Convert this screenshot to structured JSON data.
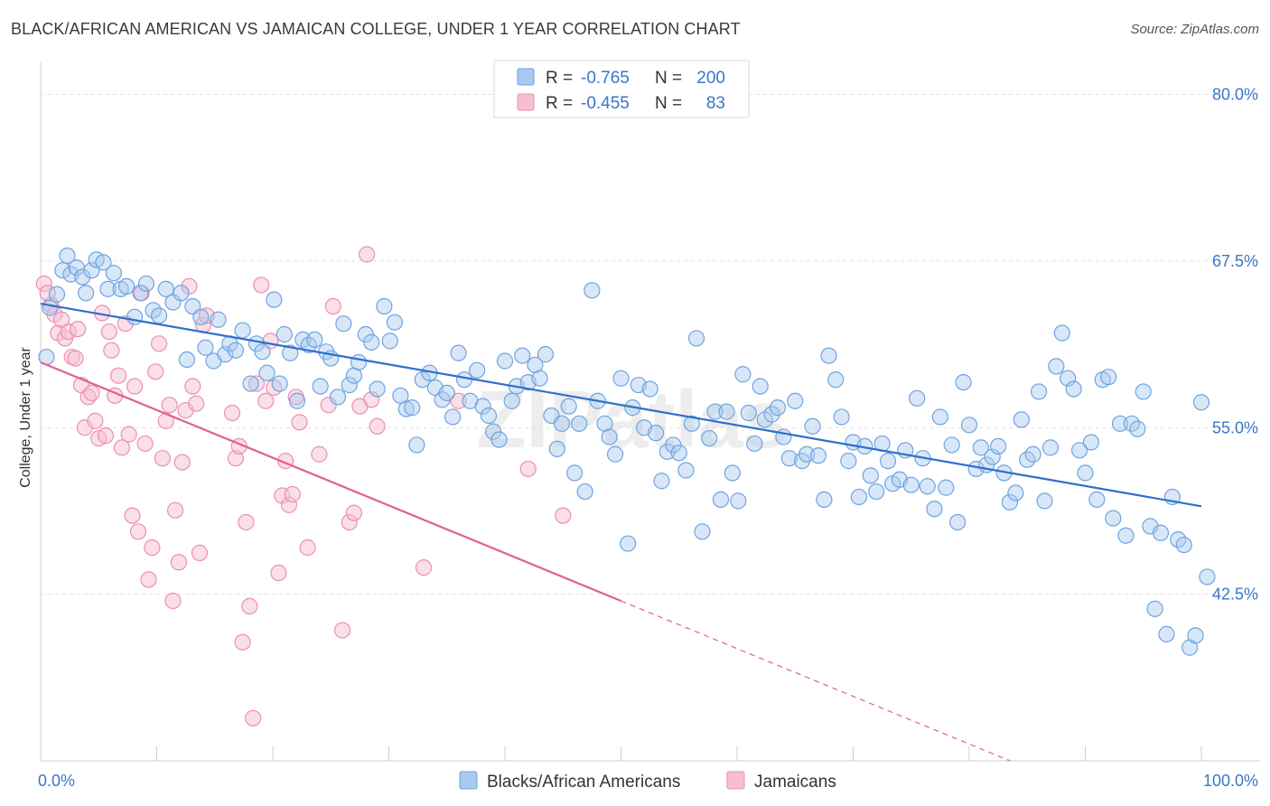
{
  "title": "BLACK/AFRICAN AMERICAN VS JAMAICAN COLLEGE, UNDER 1 YEAR CORRELATION CHART",
  "source": "Source: ZipAtlas.com",
  "watermark": "ZIPatlas",
  "colors": {
    "blue": "#6fa3e0",
    "blue_fill": "#a9c9f0",
    "blue_line": "#2e6fcc",
    "pink": "#ec8fae",
    "pink_fill": "#f6bfd1",
    "pink_line": "#e0608c",
    "grid": "#e2e2e2",
    "tick_text": "#3a76c8"
  },
  "legend": {
    "r_label": "R =",
    "n_label": "N =",
    "rows": [
      {
        "r": "-0.765",
        "n": "200"
      },
      {
        "r": "-0.455",
        "n": "83"
      }
    ]
  },
  "bottom_legend": [
    "Blacks/African Americans",
    "Jamaicans"
  ],
  "chart_data": {
    "type": "scatter",
    "title": "BLACK/AFRICAN AMERICAN VS JAMAICAN COLLEGE, UNDER 1 YEAR CORRELATION CHART",
    "xlabel": "",
    "ylabel": "College, Under 1 year",
    "xlim": [
      0,
      100
    ],
    "ylim": [
      30,
      82
    ],
    "x_tick_labels": [
      "0.0%",
      "100.0%"
    ],
    "y_ticks": [
      42.5,
      55.0,
      67.5,
      80.0
    ],
    "y_tick_labels": [
      "42.5%",
      "55.0%",
      "67.5%",
      "80.0%"
    ],
    "grid": true,
    "legend_position": "top-center",
    "series": [
      {
        "name": "Blacks/African Americans",
        "r": -0.765,
        "n": 200,
        "trend": {
          "x": [
            0,
            100
          ],
          "y": [
            64.3,
            49.1
          ],
          "style": "solid"
        },
        "points": [
          [
            0.5,
            60.3
          ],
          [
            0.8,
            64.0
          ],
          [
            1.4,
            65.0
          ],
          [
            1.9,
            66.8
          ],
          [
            2.3,
            67.9
          ],
          [
            2.6,
            66.5
          ],
          [
            3.1,
            67.0
          ],
          [
            3.6,
            66.3
          ],
          [
            3.9,
            65.1
          ],
          [
            4.4,
            66.8
          ],
          [
            4.8,
            67.6
          ],
          [
            5.4,
            67.4
          ],
          [
            5.8,
            65.4
          ],
          [
            6.3,
            66.6
          ],
          [
            6.9,
            65.4
          ],
          [
            7.4,
            65.6
          ],
          [
            8.1,
            63.3
          ],
          [
            8.6,
            65.1
          ],
          [
            9.1,
            65.8
          ],
          [
            9.7,
            63.8
          ],
          [
            10.2,
            63.4
          ],
          [
            10.8,
            65.4
          ],
          [
            11.4,
            64.4
          ],
          [
            12.1,
            65.1
          ],
          [
            12.6,
            60.1
          ],
          [
            13.1,
            64.1
          ],
          [
            13.8,
            63.3
          ],
          [
            14.2,
            61.0
          ],
          [
            14.9,
            60.0
          ],
          [
            15.3,
            63.1
          ],
          [
            15.9,
            60.5
          ],
          [
            16.3,
            61.3
          ],
          [
            16.8,
            60.8
          ],
          [
            17.4,
            62.3
          ],
          [
            18.1,
            58.3
          ],
          [
            18.6,
            61.3
          ],
          [
            19.1,
            60.7
          ],
          [
            19.5,
            59.1
          ],
          [
            20.1,
            64.6
          ],
          [
            20.6,
            58.3
          ],
          [
            21.0,
            62.0
          ],
          [
            21.5,
            60.6
          ],
          [
            22.1,
            57.0
          ],
          [
            22.6,
            61.6
          ],
          [
            23.1,
            61.2
          ],
          [
            23.6,
            61.6
          ],
          [
            24.1,
            58.1
          ],
          [
            24.6,
            60.7
          ],
          [
            25.0,
            60.2
          ],
          [
            25.6,
            57.3
          ],
          [
            26.1,
            62.8
          ],
          [
            26.6,
            58.2
          ],
          [
            27.0,
            58.9
          ],
          [
            27.4,
            59.9
          ],
          [
            28.0,
            62.0
          ],
          [
            28.5,
            61.4
          ],
          [
            29.0,
            57.9
          ],
          [
            29.6,
            64.1
          ],
          [
            30.1,
            61.5
          ],
          [
            30.5,
            62.9
          ],
          [
            31.0,
            57.4
          ],
          [
            31.5,
            56.4
          ],
          [
            32.0,
            56.5
          ],
          [
            32.4,
            53.7
          ],
          [
            32.9,
            58.6
          ],
          [
            33.5,
            59.1
          ],
          [
            34.0,
            58.0
          ],
          [
            34.6,
            57.1
          ],
          [
            35.0,
            57.6
          ],
          [
            35.5,
            55.8
          ],
          [
            36.0,
            60.6
          ],
          [
            36.5,
            58.6
          ],
          [
            37.0,
            57.0
          ],
          [
            37.6,
            59.3
          ],
          [
            38.1,
            56.6
          ],
          [
            38.6,
            55.9
          ],
          [
            39.0,
            54.7
          ],
          [
            39.5,
            54.1
          ],
          [
            40.0,
            60.0
          ],
          [
            40.6,
            57.0
          ],
          [
            41.0,
            58.1
          ],
          [
            41.5,
            60.4
          ],
          [
            42.0,
            58.4
          ],
          [
            42.6,
            59.7
          ],
          [
            43.0,
            58.7
          ],
          [
            43.5,
            60.5
          ],
          [
            44.0,
            55.9
          ],
          [
            44.5,
            53.4
          ],
          [
            44.9,
            55.3
          ],
          [
            45.5,
            56.6
          ],
          [
            46.0,
            51.6
          ],
          [
            46.4,
            55.3
          ],
          [
            46.9,
            50.2
          ],
          [
            47.5,
            65.3
          ],
          [
            48.0,
            57.0
          ],
          [
            48.6,
            55.3
          ],
          [
            49.0,
            54.3
          ],
          [
            49.5,
            53.0
          ],
          [
            50.0,
            58.7
          ],
          [
            50.6,
            46.3
          ],
          [
            51.0,
            56.5
          ],
          [
            51.5,
            58.2
          ],
          [
            52.0,
            55.0
          ],
          [
            52.5,
            57.9
          ],
          [
            53.0,
            54.6
          ],
          [
            53.5,
            51.0
          ],
          [
            54.0,
            53.2
          ],
          [
            54.5,
            53.7
          ],
          [
            55.0,
            53.1
          ],
          [
            55.6,
            51.8
          ],
          [
            56.1,
            55.3
          ],
          [
            56.5,
            61.7
          ],
          [
            57.0,
            47.2
          ],
          [
            57.6,
            54.2
          ],
          [
            58.1,
            56.2
          ],
          [
            58.6,
            49.6
          ],
          [
            59.1,
            56.2
          ],
          [
            59.6,
            51.6
          ],
          [
            60.1,
            49.5
          ],
          [
            60.5,
            59.0
          ],
          [
            61.0,
            56.1
          ],
          [
            61.5,
            53.8
          ],
          [
            62.0,
            58.1
          ],
          [
            62.4,
            55.6
          ],
          [
            63.0,
            56.0
          ],
          [
            63.5,
            56.5
          ],
          [
            64.0,
            54.3
          ],
          [
            64.5,
            52.7
          ],
          [
            65.0,
            57.0
          ],
          [
            65.6,
            52.5
          ],
          [
            66.0,
            53.0
          ],
          [
            66.5,
            55.1
          ],
          [
            67.0,
            52.9
          ],
          [
            67.5,
            49.6
          ],
          [
            67.9,
            60.4
          ],
          [
            68.5,
            58.6
          ],
          [
            69.0,
            55.8
          ],
          [
            69.6,
            52.5
          ],
          [
            70.0,
            53.9
          ],
          [
            70.5,
            49.8
          ],
          [
            71.0,
            53.6
          ],
          [
            71.5,
            51.4
          ],
          [
            72.0,
            50.2
          ],
          [
            72.5,
            53.8
          ],
          [
            73.0,
            52.5
          ],
          [
            73.4,
            50.8
          ],
          [
            74.0,
            51.1
          ],
          [
            74.5,
            53.3
          ],
          [
            75.0,
            50.7
          ],
          [
            75.5,
            57.2
          ],
          [
            76.0,
            52.7
          ],
          [
            76.4,
            50.6
          ],
          [
            77.0,
            48.9
          ],
          [
            77.5,
            55.8
          ],
          [
            78.0,
            50.5
          ],
          [
            78.5,
            53.7
          ],
          [
            79.0,
            47.9
          ],
          [
            79.5,
            58.4
          ],
          [
            80.0,
            55.2
          ],
          [
            80.6,
            51.9
          ],
          [
            81.0,
            53.5
          ],
          [
            81.5,
            52.2
          ],
          [
            82.0,
            52.8
          ],
          [
            82.5,
            53.6
          ],
          [
            83.0,
            51.6
          ],
          [
            83.5,
            49.4
          ],
          [
            84.0,
            50.1
          ],
          [
            84.5,
            55.6
          ],
          [
            85.0,
            52.6
          ],
          [
            85.5,
            53.0
          ],
          [
            86.0,
            57.7
          ],
          [
            86.5,
            49.5
          ],
          [
            87.0,
            53.5
          ],
          [
            87.5,
            59.6
          ],
          [
            88.0,
            62.1
          ],
          [
            88.5,
            58.7
          ],
          [
            89.0,
            57.9
          ],
          [
            89.5,
            53.3
          ],
          [
            90.0,
            51.6
          ],
          [
            90.5,
            53.9
          ],
          [
            91.0,
            49.6
          ],
          [
            91.5,
            58.6
          ],
          [
            92.0,
            58.8
          ],
          [
            92.4,
            48.2
          ],
          [
            93.0,
            55.3
          ],
          [
            93.5,
            46.9
          ],
          [
            94.0,
            55.3
          ],
          [
            94.5,
            54.9
          ],
          [
            95.0,
            57.7
          ],
          [
            95.6,
            47.6
          ],
          [
            96.0,
            41.4
          ],
          [
            96.5,
            47.1
          ],
          [
            97.0,
            39.5
          ],
          [
            97.5,
            49.8
          ],
          [
            98.0,
            46.6
          ],
          [
            98.5,
            46.2
          ],
          [
            99.0,
            38.5
          ],
          [
            99.5,
            39.4
          ],
          [
            100.0,
            56.9
          ],
          [
            100.5,
            43.8
          ]
        ]
      },
      {
        "name": "Jamaicans",
        "r": -0.455,
        "n": 83,
        "trend": {
          "x": [
            0,
            50
          ],
          "y": [
            59.9,
            42.0
          ],
          "x_dashed_end": 100,
          "y_dashed_end": 24.1,
          "style": "solid-then-dashed"
        },
        "points": [
          [
            0.3,
            65.8
          ],
          [
            0.6,
            65.1
          ],
          [
            0.9,
            64.2
          ],
          [
            1.2,
            63.5
          ],
          [
            1.5,
            62.1
          ],
          [
            1.8,
            63.1
          ],
          [
            2.1,
            61.7
          ],
          [
            2.4,
            62.2
          ],
          [
            2.7,
            60.3
          ],
          [
            3.0,
            60.2
          ],
          [
            3.2,
            62.4
          ],
          [
            3.5,
            58.2
          ],
          [
            3.8,
            55.0
          ],
          [
            4.1,
            57.3
          ],
          [
            4.4,
            57.6
          ],
          [
            4.7,
            55.5
          ],
          [
            5.0,
            54.2
          ],
          [
            5.3,
            63.6
          ],
          [
            5.6,
            54.4
          ],
          [
            5.9,
            62.2
          ],
          [
            6.1,
            60.8
          ],
          [
            6.4,
            57.4
          ],
          [
            6.7,
            58.9
          ],
          [
            7.0,
            53.5
          ],
          [
            7.3,
            62.8
          ],
          [
            7.6,
            54.5
          ],
          [
            7.9,
            48.4
          ],
          [
            8.1,
            58.1
          ],
          [
            8.4,
            47.2
          ],
          [
            8.7,
            65.1
          ],
          [
            9.0,
            53.8
          ],
          [
            9.3,
            43.6
          ],
          [
            9.6,
            46.0
          ],
          [
            9.9,
            59.2
          ],
          [
            10.2,
            61.3
          ],
          [
            10.5,
            52.7
          ],
          [
            10.8,
            55.5
          ],
          [
            11.1,
            56.7
          ],
          [
            11.4,
            42.0
          ],
          [
            11.6,
            48.8
          ],
          [
            11.9,
            44.9
          ],
          [
            12.2,
            52.4
          ],
          [
            12.5,
            56.3
          ],
          [
            12.8,
            65.6
          ],
          [
            13.1,
            58.1
          ],
          [
            13.4,
            56.8
          ],
          [
            13.7,
            45.6
          ],
          [
            14.0,
            62.7
          ],
          [
            14.3,
            63.4
          ],
          [
            16.5,
            56.1
          ],
          [
            16.8,
            52.7
          ],
          [
            17.1,
            53.6
          ],
          [
            17.4,
            38.9
          ],
          [
            17.7,
            47.9
          ],
          [
            18.0,
            41.6
          ],
          [
            18.3,
            33.2
          ],
          [
            18.6,
            58.3
          ],
          [
            19.0,
            65.7
          ],
          [
            19.4,
            57.0
          ],
          [
            19.8,
            61.5
          ],
          [
            20.1,
            58.0
          ],
          [
            20.5,
            44.1
          ],
          [
            20.8,
            49.9
          ],
          [
            21.1,
            52.5
          ],
          [
            21.4,
            49.2
          ],
          [
            21.7,
            50.0
          ],
          [
            22.0,
            57.3
          ],
          [
            22.3,
            55.4
          ],
          [
            23.0,
            46.0
          ],
          [
            24.0,
            53.0
          ],
          [
            24.8,
            56.7
          ],
          [
            25.2,
            64.1
          ],
          [
            26.0,
            39.8
          ],
          [
            26.6,
            47.9
          ],
          [
            27.0,
            48.6
          ],
          [
            27.5,
            56.6
          ],
          [
            28.1,
            68.0
          ],
          [
            28.5,
            57.1
          ],
          [
            29.0,
            55.1
          ],
          [
            33.0,
            44.5
          ],
          [
            36.0,
            57.0
          ],
          [
            42.0,
            51.9
          ],
          [
            45.0,
            48.4
          ]
        ]
      }
    ]
  }
}
